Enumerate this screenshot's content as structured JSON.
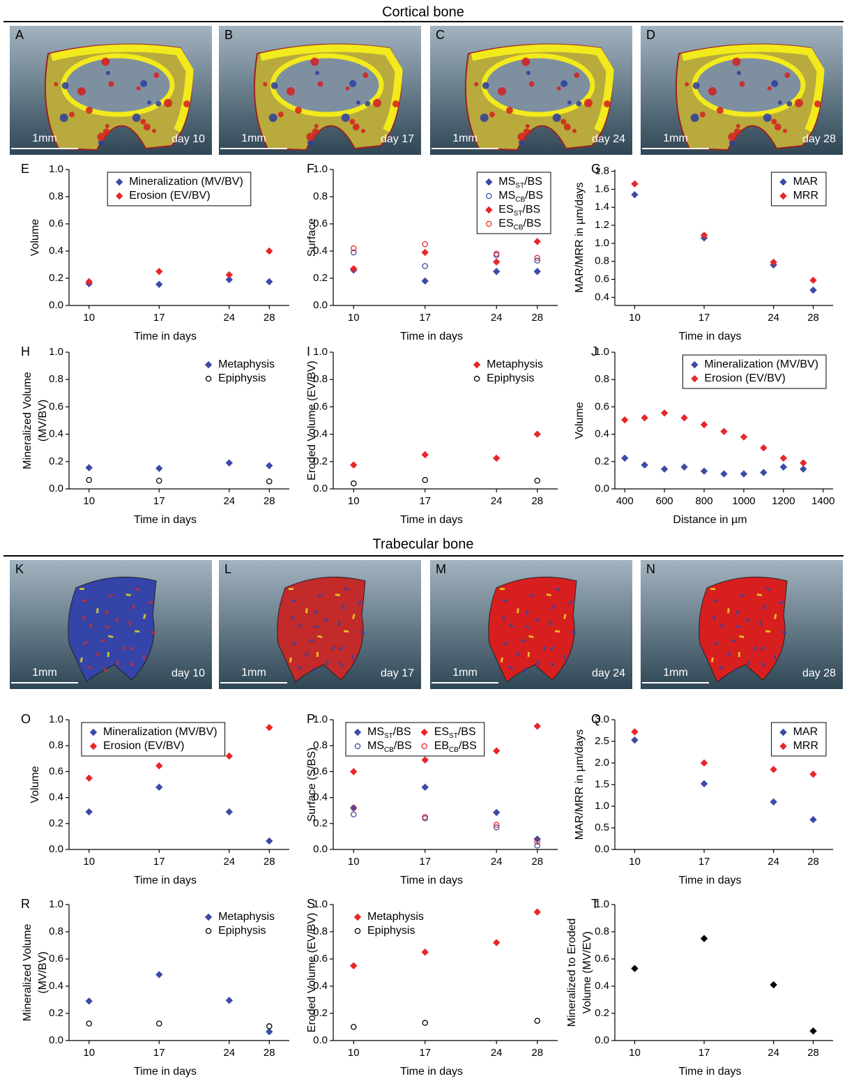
{
  "sections": [
    {
      "title": "Cortical bone",
      "images": [
        {
          "label": "A",
          "scale": "1mm",
          "day": "day 10"
        },
        {
          "label": "B",
          "scale": "1mm",
          "day": "day 17"
        },
        {
          "label": "C",
          "scale": "1mm",
          "day": "day 24"
        },
        {
          "label": "D",
          "scale": "1mm",
          "day": "day 28"
        }
      ]
    },
    {
      "title": "Trabecular bone",
      "images": [
        {
          "label": "K",
          "scale": "1mm",
          "day": "day 10"
        },
        {
          "label": "L",
          "scale": "1mm",
          "day": "day 17"
        },
        {
          "label": "M",
          "scale": "1mm",
          "day": "day 24"
        },
        {
          "label": "N",
          "scale": "1mm",
          "day": "day 28"
        }
      ]
    }
  ],
  "chart_data": [
    {
      "type": "scatter",
      "panel": "E",
      "xlabel": "Time in days",
      "ylabel": [
        "Volume"
      ],
      "x": [
        10,
        17,
        24,
        28
      ],
      "xlim": [
        8,
        30
      ],
      "xticks": [
        10,
        17,
        24,
        28
      ],
      "ylim": [
        0,
        1
      ],
      "yticks": [
        {
          "value": 0,
          "label": "0.0"
        },
        0.2,
        0.4,
        0.6,
        0.8,
        {
          "value": 1,
          "label": "1.0"
        }
      ],
      "legend": "top-center",
      "legend_frame": true,
      "series": [
        {
          "name": "Mineralization (MV/BV)",
          "color": "#3b4ba6",
          "marker": "diamond",
          "values": [
            0.16,
            0.155,
            0.19,
            0.175
          ]
        },
        {
          "name": "Erosion (EV/BV)",
          "color": "#e8262a",
          "marker": "diamond",
          "values": [
            0.175,
            0.25,
            0.225,
            0.4
          ]
        }
      ]
    },
    {
      "type": "scatter",
      "panel": "F",
      "xlabel": "Time in days",
      "ylabel": [
        "Surface"
      ],
      "x": [
        10,
        17,
        24,
        28
      ],
      "xlim": [
        8,
        30
      ],
      "xticks": [
        10,
        17,
        24,
        28
      ],
      "ylim": [
        0,
        1
      ],
      "yticks": [
        {
          "value": 0,
          "label": "0.0"
        },
        0.2,
        0.4,
        0.6,
        0.8,
        {
          "value": 1,
          "label": "1.0"
        }
      ],
      "legend": "top-right",
      "legend_frame": true,
      "series": [
        {
          "name": "MS",
          "subscript": "ST",
          "suffix": "/BS",
          "color": "#3b4ba6",
          "marker": "diamond",
          "values": [
            0.26,
            0.18,
            0.25,
            0.25
          ]
        },
        {
          "name": "MS",
          "subscript": "CB",
          "suffix": "/BS",
          "color": "#3b4ba6",
          "marker": "circle",
          "values": [
            0.39,
            0.29,
            0.37,
            0.33
          ]
        },
        {
          "name": "ES",
          "subscript": "ST",
          "suffix": "/BS",
          "color": "#e8262a",
          "marker": "diamond",
          "values": [
            0.27,
            0.39,
            0.32,
            0.47
          ]
        },
        {
          "name": "ES",
          "subscript": "CB",
          "suffix": "/BS",
          "color": "#e8262a",
          "marker": "circle",
          "values": [
            0.42,
            0.45,
            0.38,
            0.35
          ]
        }
      ]
    },
    {
      "type": "scatter",
      "panel": "G",
      "xlabel": "Time in days",
      "ylabel": [
        "MAR/MRR in µm/days"
      ],
      "x": [
        10,
        17,
        24,
        28
      ],
      "xlim": [
        8,
        30
      ],
      "xticks": [
        10,
        17,
        24,
        28
      ],
      "ylim": [
        0.31,
        1.82
      ],
      "yticks": [
        0.4,
        0.6,
        0.8,
        {
          "value": 1,
          "label": "1.0"
        },
        1.2,
        1.4,
        1.6,
        1.8
      ],
      "legend": "top-right",
      "legend_frame": true,
      "series": [
        {
          "name": "MAR",
          "color": "#3b4ba6",
          "marker": "diamond",
          "values": [
            1.54,
            1.06,
            0.76,
            0.48
          ]
        },
        {
          "name": "MRR",
          "color": "#e8262a",
          "marker": "diamond",
          "values": [
            1.66,
            1.09,
            0.79,
            0.59
          ]
        }
      ]
    },
    {
      "type": "scatter",
      "panel": "H",
      "xlabel": "Time in days",
      "ylabel": [
        "Mineralized Volume",
        "(MV/BV)"
      ],
      "x": [
        10,
        17,
        24,
        28
      ],
      "xlim": [
        8,
        30
      ],
      "xticks": [
        10,
        17,
        24,
        28
      ],
      "ylim": [
        0,
        1
      ],
      "yticks": [
        {
          "value": 0,
          "label": "0.0"
        },
        0.2,
        0.4,
        0.6,
        0.8,
        {
          "value": 1,
          "label": "1.0"
        }
      ],
      "legend": "top-right",
      "legend_frame": false,
      "series": [
        {
          "name": "Metaphysis",
          "color": "#3b4ba6",
          "marker": "diamond",
          "values": [
            0.155,
            0.15,
            0.19,
            0.17
          ]
        },
        {
          "name": "Epiphysis",
          "color": "#000000",
          "marker": "circle",
          "values": [
            0.065,
            0.06,
            null,
            0.055
          ]
        }
      ]
    },
    {
      "type": "scatter",
      "panel": "I",
      "xlabel": "Time in days",
      "ylabel": [
        "Eroded Volume (EV/BV)"
      ],
      "x": [
        10,
        17,
        24,
        28
      ],
      "xlim": [
        8,
        30
      ],
      "xticks": [
        10,
        17,
        24,
        28
      ],
      "ylim": [
        0,
        1
      ],
      "yticks": [
        {
          "value": 0,
          "label": "0.0"
        },
        0.2,
        0.4,
        0.6,
        0.8,
        {
          "value": 1,
          "label": "1.0"
        }
      ],
      "legend": "top-right",
      "legend_frame": false,
      "series": [
        {
          "name": "Metaphysis",
          "color": "#e8262a",
          "marker": "diamond",
          "values": [
            0.175,
            0.25,
            0.225,
            0.4
          ]
        },
        {
          "name": "Epiphysis",
          "color": "#000000",
          "marker": "circle",
          "values": [
            0.04,
            0.065,
            null,
            0.06
          ]
        }
      ]
    },
    {
      "type": "scatter",
      "panel": "J",
      "xlabel": "Distance in µm",
      "ylabel": [
        "Volume"
      ],
      "x": [
        400,
        500,
        600,
        700,
        800,
        900,
        1000,
        1100,
        1200,
        1300
      ],
      "xlim": [
        350,
        1450
      ],
      "xticks": [
        400,
        600,
        800,
        1000,
        1200,
        1400
      ],
      "ylim": [
        0,
        1
      ],
      "yticks": [
        {
          "value": 0,
          "label": "0.0"
        },
        0.2,
        0.4,
        0.6,
        0.8,
        {
          "value": 1,
          "label": "1.0"
        }
      ],
      "legend": "top-right",
      "legend_frame": true,
      "series": [
        {
          "name": "Mineralization (MV/BV)",
          "color": "#3b4ba6",
          "marker": "diamond",
          "values": [
            0.225,
            0.175,
            0.145,
            0.16,
            0.13,
            0.11,
            0.11,
            0.12,
            0.16,
            0.145
          ]
        },
        {
          "name": "Erosion (EV/BV)",
          "color": "#e8262a",
          "marker": "diamond",
          "values": [
            0.505,
            0.52,
            0.555,
            0.52,
            0.47,
            0.42,
            0.38,
            0.3,
            0.225,
            0.19
          ]
        }
      ]
    },
    {
      "type": "scatter",
      "panel": "O",
      "xlabel": "Time in days",
      "ylabel": [
        "Volume"
      ],
      "x": [
        10,
        17,
        24,
        28
      ],
      "xlim": [
        8,
        30
      ],
      "xticks": [
        10,
        17,
        24,
        28
      ],
      "ylim": [
        0,
        1
      ],
      "yticks": [
        {
          "value": 0,
          "label": "0.0"
        },
        0.2,
        0.4,
        0.6,
        0.8,
        {
          "value": 1,
          "label": "1.0"
        }
      ],
      "legend": "top-left",
      "legend_frame": true,
      "series": [
        {
          "name": "Mineralization (MV/BV)",
          "color": "#3b4ba6",
          "marker": "diamond",
          "values": [
            0.29,
            0.48,
            0.29,
            0.065
          ]
        },
        {
          "name": "Erosion (EV/BV)",
          "color": "#e8262a",
          "marker": "diamond",
          "values": [
            0.55,
            0.645,
            0.72,
            0.94
          ]
        }
      ]
    },
    {
      "type": "scatter",
      "panel": "P",
      "xlabel": "Time in days",
      "ylabel": [
        "Surface (S/BS)"
      ],
      "x": [
        10,
        17,
        24,
        28
      ],
      "xlim": [
        8,
        30
      ],
      "xticks": [
        10,
        17,
        24,
        28
      ],
      "ylim": [
        0,
        1
      ],
      "yticks": [
        {
          "value": 0,
          "label": "0.0"
        },
        0.2,
        0.4,
        0.6,
        0.8,
        {
          "value": 1,
          "label": "1.0"
        }
      ],
      "legend": "top-left",
      "legend_frame": true,
      "legend_columns": 2,
      "series": [
        {
          "name": "MS",
          "subscript": "ST",
          "suffix": "/BS",
          "color": "#3b4ba6",
          "marker": "diamond",
          "values": [
            0.32,
            0.48,
            0.285,
            0.08
          ]
        },
        {
          "name": "MS",
          "subscript": "CB",
          "suffix": "/BS",
          "color": "#3b4ba6",
          "marker": "circle",
          "values": [
            0.27,
            0.24,
            0.17,
            0.03
          ]
        },
        {
          "name": "ES",
          "subscript": "ST",
          "suffix": "/BS",
          "color": "#e8262a",
          "marker": "diamond",
          "values": [
            0.6,
            0.69,
            0.76,
            0.95
          ]
        },
        {
          "name": "EB",
          "subscript": "CB",
          "suffix": "/BS",
          "color": "#e8262a",
          "marker": "circle",
          "values": [
            0.32,
            0.25,
            0.19,
            0.06
          ]
        }
      ]
    },
    {
      "type": "scatter",
      "panel": "Q",
      "xlabel": "Time in days",
      "ylabel": [
        "MAR/MRR in µm/days"
      ],
      "x": [
        10,
        17,
        24,
        28
      ],
      "xlim": [
        8,
        30
      ],
      "xticks": [
        10,
        17,
        24,
        28
      ],
      "ylim": [
        0,
        3
      ],
      "yticks": [
        {
          "value": 0,
          "label": "0.0"
        },
        0.5,
        {
          "value": 1,
          "label": "1.0"
        },
        1.5,
        {
          "value": 2,
          "label": "2.0"
        },
        2.5,
        {
          "value": 3,
          "label": "3.0"
        }
      ],
      "legend": "top-right",
      "legend_frame": true,
      "series": [
        {
          "name": "MAR",
          "color": "#3b4ba6",
          "marker": "diamond",
          "values": [
            2.53,
            1.52,
            1.1,
            0.69
          ]
        },
        {
          "name": "MRR",
          "color": "#e8262a",
          "marker": "diamond",
          "values": [
            2.72,
            2.0,
            1.85,
            1.74
          ]
        }
      ]
    },
    {
      "type": "scatter",
      "panel": "R",
      "xlabel": "Time in days",
      "ylabel": [
        "Mineralized Volume",
        "(MV/BV)"
      ],
      "x": [
        10,
        17,
        24,
        28
      ],
      "xlim": [
        8,
        30
      ],
      "xticks": [
        10,
        17,
        24,
        28
      ],
      "ylim": [
        0,
        1
      ],
      "yticks": [
        {
          "value": 0,
          "label": "0.0"
        },
        0.2,
        0.4,
        0.6,
        0.8,
        {
          "value": 1,
          "label": "1.0"
        }
      ],
      "legend": "top-right",
      "legend_frame": false,
      "series": [
        {
          "name": "Metaphysis",
          "color": "#3b4ba6",
          "marker": "diamond",
          "values": [
            0.29,
            0.485,
            0.295,
            0.065
          ]
        },
        {
          "name": "Epiphysis",
          "color": "#000000",
          "marker": "circle",
          "values": [
            0.125,
            0.125,
            null,
            0.105
          ]
        }
      ]
    },
    {
      "type": "scatter",
      "panel": "S",
      "xlabel": "Time in days",
      "ylabel": [
        "Eroded Volume (EV/BV)"
      ],
      "x": [
        10,
        17,
        24,
        28
      ],
      "xlim": [
        8,
        30
      ],
      "xticks": [
        10,
        17,
        24,
        28
      ],
      "ylim": [
        0,
        1
      ],
      "yticks": [
        {
          "value": 0,
          "label": "0.0"
        },
        0.2,
        0.4,
        0.6,
        0.8,
        {
          "value": 1,
          "label": "1.0"
        }
      ],
      "legend": "top-left",
      "legend_frame": false,
      "series": [
        {
          "name": "Metaphysis",
          "color": "#e8262a",
          "marker": "diamond",
          "values": [
            0.55,
            0.65,
            0.72,
            0.945
          ]
        },
        {
          "name": "Epiphysis",
          "color": "#000000",
          "marker": "circle",
          "values": [
            0.1,
            0.13,
            null,
            0.145
          ]
        }
      ]
    },
    {
      "type": "scatter",
      "panel": "T",
      "xlabel": "Time in days",
      "ylabel": [
        "Mineralized to Eroded",
        "Volume (MV/EV)"
      ],
      "x": [
        10,
        17,
        24,
        28
      ],
      "xlim": [
        8,
        30
      ],
      "xticks": [
        10,
        17,
        24,
        28
      ],
      "ylim": [
        0,
        1
      ],
      "yticks": [
        {
          "value": 0,
          "label": "0.0"
        },
        0.2,
        0.4,
        0.6,
        0.8,
        {
          "value": 1,
          "label": "1.0"
        }
      ],
      "series": [
        {
          "color": "#000000",
          "marker": "diamond",
          "values": [
            0.53,
            0.75,
            0.41,
            0.07
          ]
        }
      ]
    }
  ]
}
